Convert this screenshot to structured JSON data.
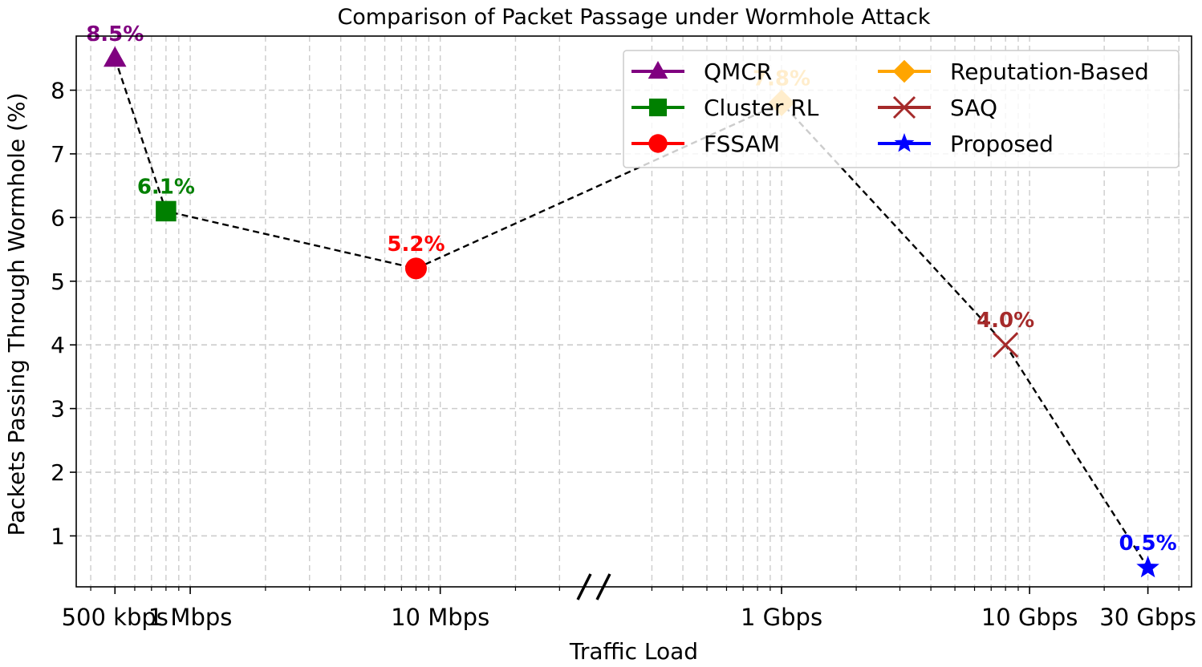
{
  "chart_data": {
    "type": "scatter",
    "title": "Comparison of Packet Passage under Wormhole Attack",
    "xlabel": "Traffic Load",
    "ylabel": "Packets Passing Through Wormhole (%)",
    "x_scale": "log",
    "x_axis_break": true,
    "x_ticks": [
      {
        "label": "500 kbps",
        "value_mbps": 0.5
      },
      {
        "label": "1 Mbps",
        "value_mbps": 1
      },
      {
        "label": "10 Mbps",
        "value_mbps": 10
      },
      {
        "label": "1 Gbps",
        "value_mbps": 1000
      },
      {
        "label": "10 Gbps",
        "value_mbps": 10000
      },
      {
        "label": "30 Gbps",
        "value_mbps": 30000
      }
    ],
    "y_ticks": [
      1,
      2,
      3,
      4,
      5,
      6,
      7,
      8
    ],
    "ylim": [
      0.2,
      8.85
    ],
    "grid": true,
    "legend": {
      "position": "top-right",
      "columns": 2
    },
    "connector": {
      "style": "dashed",
      "color": "#000000"
    },
    "series": [
      {
        "name": "QMCR",
        "x_mbps": 0.5,
        "y": 8.5,
        "label": "8.5%",
        "marker": "triangle",
        "color": "#800080"
      },
      {
        "name": "Cluster RL",
        "x_mbps": 0.8,
        "y": 6.1,
        "label": "6.1%",
        "marker": "square",
        "color": "#008000"
      },
      {
        "name": "FSSAM",
        "x_mbps": 8,
        "y": 5.2,
        "label": "5.2%",
        "marker": "circle",
        "color": "#ff0000"
      },
      {
        "name": "Reputation-Based",
        "x_mbps": 1000,
        "y": 7.8,
        "label": "7.8%",
        "marker": "diamond",
        "color": "#ffa500"
      },
      {
        "name": "SAQ",
        "x_mbps": 8000,
        "y": 4.0,
        "label": "4.0%",
        "marker": "x",
        "color": "#a52a2a"
      },
      {
        "name": "Proposed",
        "x_mbps": 30000,
        "y": 0.5,
        "label": "0.5%",
        "marker": "star",
        "color": "#0000ff"
      }
    ]
  }
}
